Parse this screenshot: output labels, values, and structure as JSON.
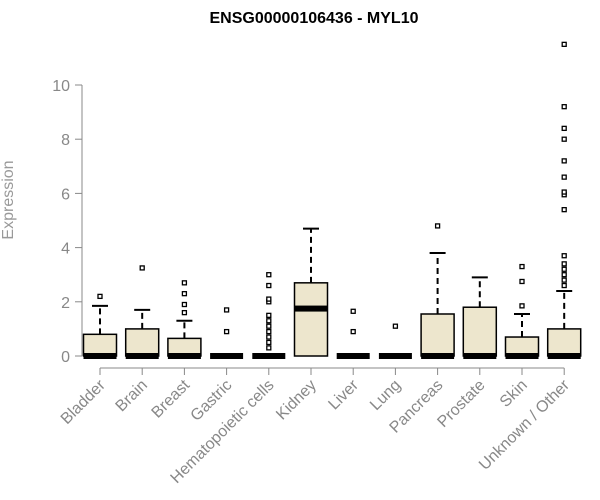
{
  "chart_data": {
    "type": "boxplot",
    "title": "ENSG00000106436 - MYL10",
    "xlabel": "",
    "ylabel": "Expression",
    "ylim": [
      0,
      11.5
    ],
    "yticks": [
      0,
      2,
      4,
      6,
      8,
      10
    ],
    "grid": false,
    "legend": "none",
    "colors": {
      "box_fill": "#ede6cd",
      "box_stroke": "#000000",
      "axis": "#888888",
      "title": "#000000"
    },
    "categories": [
      "Bladder",
      "Brain",
      "Breast",
      "Gastric",
      "Hematopoietic cells",
      "Kidney",
      "Liver",
      "Lung",
      "Pancreas",
      "Prostate",
      "Skin",
      "Unknown / Other"
    ],
    "boxes": [
      {
        "q1": 0,
        "median": 0,
        "q3": 0.8,
        "whisker_low": 0,
        "whisker_high": 1.85,
        "outliers": [
          2.2
        ]
      },
      {
        "q1": 0,
        "median": 0,
        "q3": 1.0,
        "whisker_low": 0,
        "whisker_high": 1.7,
        "outliers": [
          3.25
        ]
      },
      {
        "q1": 0,
        "median": 0,
        "q3": 0.65,
        "whisker_low": 0,
        "whisker_high": 1.3,
        "outliers": [
          1.6,
          1.9,
          2.3,
          2.7
        ]
      },
      {
        "q1": 0,
        "median": 0,
        "q3": 0,
        "whisker_low": 0,
        "whisker_high": 0,
        "outliers": [
          0.9,
          1.7
        ]
      },
      {
        "q1": 0,
        "median": 0,
        "q3": 0,
        "whisker_low": 0,
        "whisker_high": 0,
        "outliers": [
          0.3,
          0.5,
          0.7,
          0.9,
          1.1,
          1.3,
          1.5,
          2.0,
          2.1,
          2.6,
          3.0
        ]
      },
      {
        "q1": 0,
        "median": 1.75,
        "q3": 2.7,
        "whisker_low": 0,
        "whisker_high": 4.7,
        "outliers": []
      },
      {
        "q1": 0,
        "median": 0,
        "q3": 0,
        "whisker_low": 0,
        "whisker_high": 0,
        "outliers": [
          0.9,
          1.65
        ]
      },
      {
        "q1": 0,
        "median": 0,
        "q3": 0,
        "whisker_low": 0,
        "whisker_high": 0,
        "outliers": [
          1.1
        ]
      },
      {
        "q1": 0,
        "median": 0,
        "q3": 1.55,
        "whisker_low": 0,
        "whisker_high": 3.8,
        "outliers": [
          4.8
        ]
      },
      {
        "q1": 0,
        "median": 0,
        "q3": 1.8,
        "whisker_low": 0,
        "whisker_high": 2.9,
        "outliers": []
      },
      {
        "q1": 0,
        "median": 0,
        "q3": 0.7,
        "whisker_low": 0,
        "whisker_high": 1.55,
        "outliers": [
          1.85,
          2.75,
          3.3
        ]
      },
      {
        "q1": 0,
        "median": 0,
        "q3": 1.0,
        "whisker_low": 0,
        "whisker_high": 2.4,
        "outliers": [
          2.6,
          2.8,
          3.0,
          3.2,
          3.4,
          3.7,
          5.4,
          5.95,
          6.05,
          6.6,
          7.2,
          8.0,
          8.4,
          9.2,
          11.5
        ]
      }
    ]
  }
}
